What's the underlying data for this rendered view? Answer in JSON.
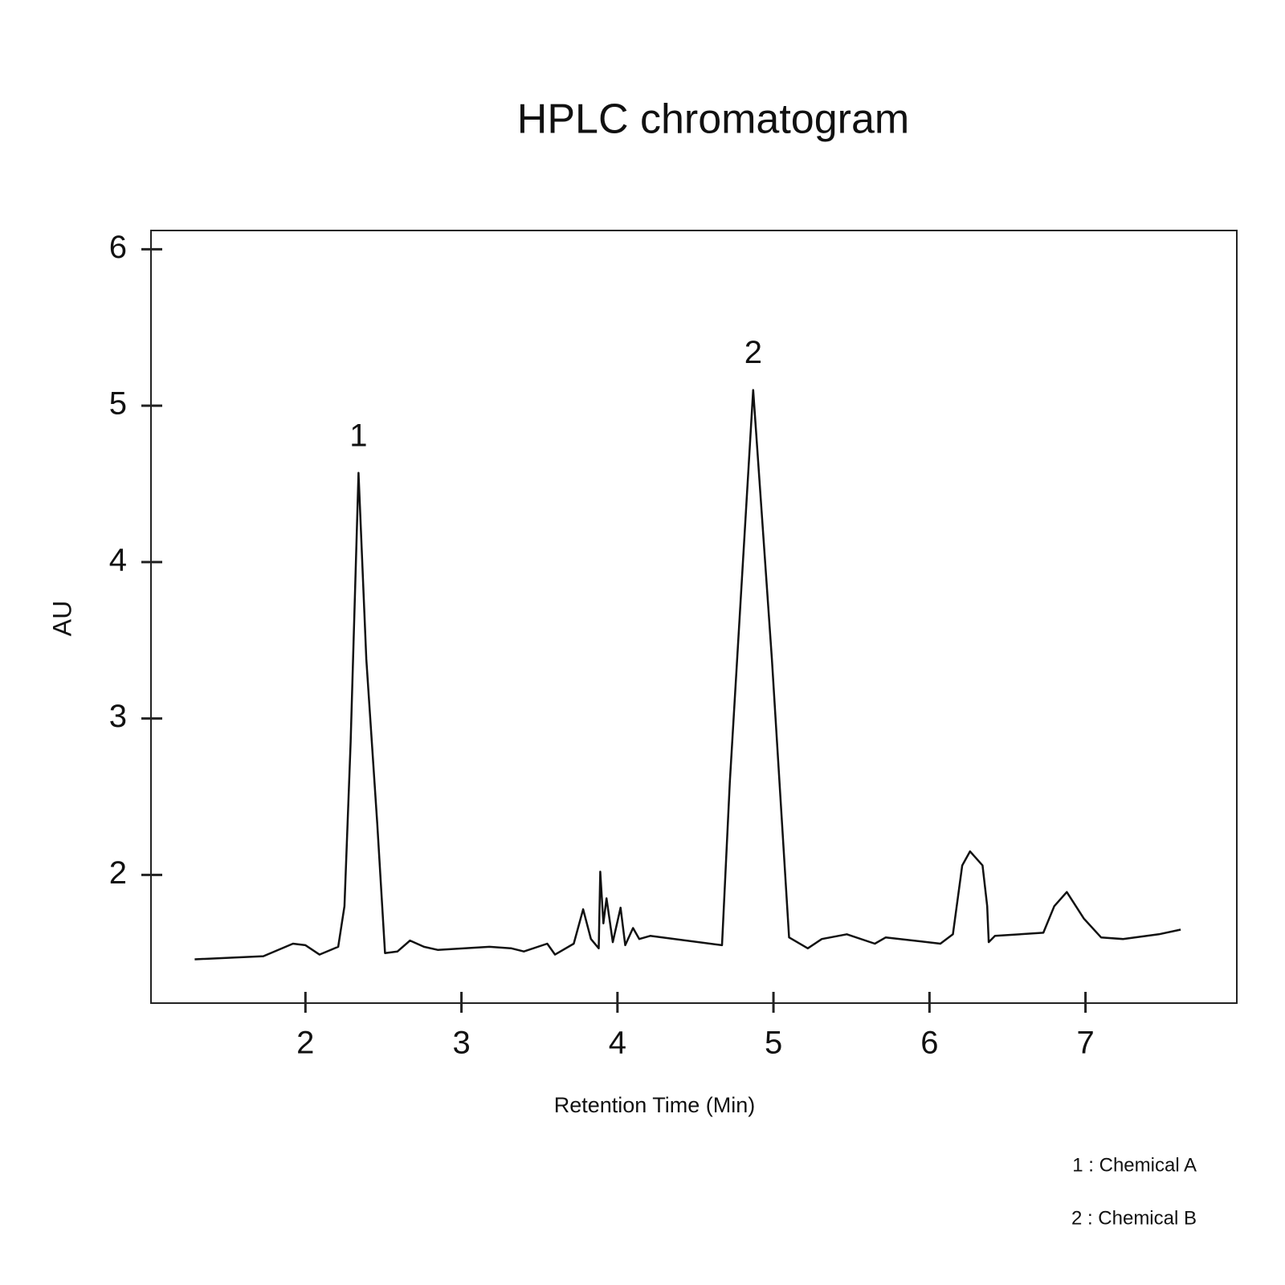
{
  "chart_data": {
    "type": "line",
    "title": "HPLC chromatogram",
    "x_label": "Retention Time (Min)",
    "y_label": "AU",
    "xlim": [
      1.01,
      7.97
    ],
    "ylim": [
      1.18,
      6.12
    ],
    "xticks": [
      2,
      3,
      4,
      5,
      6,
      7
    ],
    "yticks": [
      2,
      3,
      4,
      5,
      6
    ],
    "grid": false,
    "series": [
      {
        "name": "AU",
        "color": "#111111",
        "x": [
          1.29,
          1.73,
          1.92,
          2.0,
          2.09,
          2.21,
          2.25,
          2.29,
          2.34,
          2.39,
          2.46,
          2.51,
          2.59,
          2.67,
          2.76,
          2.85,
          3.18,
          3.32,
          3.4,
          3.55,
          3.6,
          3.72,
          3.78,
          3.83,
          3.88,
          3.89,
          3.91,
          3.93,
          3.97,
          4.02,
          4.05,
          4.1,
          4.14,
          4.21,
          4.67,
          4.72,
          4.87,
          4.99,
          5.1,
          5.22,
          5.31,
          5.47,
          5.65,
          5.72,
          6.07,
          6.15,
          6.21,
          6.26,
          6.34,
          6.37,
          6.38,
          6.42,
          6.73,
          6.8,
          6.88,
          6.99,
          7.1,
          7.24,
          7.47,
          7.61
        ],
        "values": [
          1.46,
          1.48,
          1.56,
          1.55,
          1.49,
          1.54,
          1.8,
          2.85,
          4.57,
          3.38,
          2.33,
          1.5,
          1.51,
          1.58,
          1.54,
          1.52,
          1.54,
          1.53,
          1.51,
          1.56,
          1.49,
          1.56,
          1.78,
          1.59,
          1.53,
          2.02,
          1.69,
          1.85,
          1.57,
          1.79,
          1.55,
          1.66,
          1.59,
          1.61,
          1.55,
          2.59,
          5.1,
          3.38,
          1.6,
          1.53,
          1.59,
          1.62,
          1.56,
          1.6,
          1.56,
          1.62,
          2.06,
          2.15,
          2.06,
          1.8,
          1.57,
          1.61,
          1.63,
          1.8,
          1.89,
          1.72,
          1.6,
          1.59,
          1.62,
          1.65
        ]
      }
    ],
    "annotations": [
      {
        "text": "1",
        "x": 2.34,
        "y": 4.57
      },
      {
        "text": "2",
        "x": 4.87,
        "y": 5.1
      }
    ],
    "notes": [
      "1 : Chemical A",
      "2 : Chemical B"
    ]
  }
}
